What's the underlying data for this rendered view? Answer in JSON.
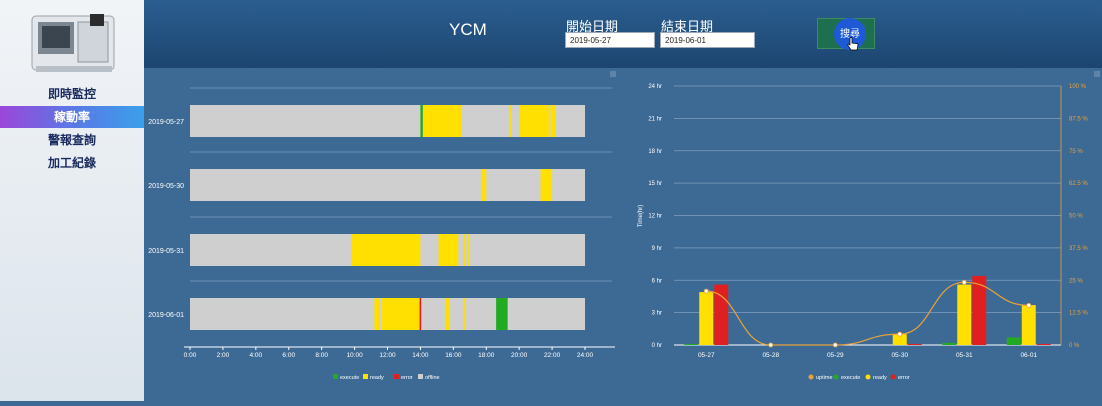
{
  "nav": {
    "items": [
      {
        "label": "即時監控"
      },
      {
        "label": "稼動率"
      },
      {
        "label": "警報查詢"
      },
      {
        "label": "加工紀錄"
      }
    ],
    "active_index": 1
  },
  "header": {
    "title": "YCM",
    "start_label": "開始日期",
    "end_label": "結束日期",
    "start_value": "2019-05-27",
    "end_value": "2019-06-01",
    "search_label": "搜尋"
  },
  "colors": {
    "execute": "#22aa22",
    "ready": "#ffe000",
    "error": "#e02020",
    "offline": "#cfcfcf",
    "uptime": "#e8a23a"
  },
  "chart_data": [
    {
      "type": "bar",
      "orientation": "timeline",
      "categories": [
        "2019-05-27",
        "2019-05-30",
        "2019-05-31",
        "2019-06-01"
      ],
      "x_ticks": [
        "0:00",
        "2:00",
        "4:00",
        "6:00",
        "8:00",
        "10:00",
        "12:00",
        "14:00",
        "16:00",
        "18:00",
        "20:00",
        "22:00",
        "24:00"
      ],
      "xlim": [
        0,
        24
      ],
      "legend": [
        "execute",
        "ready",
        "error",
        "offline"
      ],
      "legend_position": "bottom",
      "rows": [
        {
          "date": "2019-05-27",
          "segments": [
            {
              "state": "execute",
              "start": 14.0,
              "end": 14.15
            },
            {
              "state": "ready",
              "start": 14.15,
              "end": 16.5
            },
            {
              "state": "ready",
              "start": 19.45,
              "end": 19.55
            },
            {
              "state": "ready",
              "start": 20.0,
              "end": 21.8
            },
            {
              "state": "ready",
              "start": 21.9,
              "end": 22.2
            }
          ]
        },
        {
          "date": "2019-05-30",
          "segments": [
            {
              "state": "ready",
              "start": 17.7,
              "end": 18.0
            },
            {
              "state": "ready",
              "start": 21.3,
              "end": 22.0
            }
          ]
        },
        {
          "date": "2019-05-31",
          "segments": [
            {
              "state": "ready",
              "start": 9.8,
              "end": 14.0
            },
            {
              "state": "ready",
              "start": 15.1,
              "end": 16.3
            },
            {
              "state": "ready",
              "start": 16.6,
              "end": 16.7
            },
            {
              "state": "ready",
              "start": 16.9,
              "end": 17.0
            }
          ]
        },
        {
          "date": "2019-06-01",
          "segments": [
            {
              "state": "ready",
              "start": 11.2,
              "end": 11.5
            },
            {
              "state": "ready",
              "start": 11.65,
              "end": 13.95
            },
            {
              "state": "error",
              "start": 13.95,
              "end": 14.05
            },
            {
              "state": "ready",
              "start": 15.5,
              "end": 15.75
            },
            {
              "state": "ready",
              "start": 16.6,
              "end": 16.7
            },
            {
              "state": "execute",
              "start": 18.6,
              "end": 19.3
            }
          ]
        }
      ]
    },
    {
      "type": "bar",
      "categories": [
        "05-27",
        "05-28",
        "05-29",
        "05-30",
        "05-31",
        "06-01"
      ],
      "ylabel": "Time(hr)",
      "ylim": [
        0,
        24
      ],
      "y_ticks": [
        "0 hr",
        "3 hr",
        "6 hr",
        "9 hr",
        "12 hr",
        "15 hr",
        "18 hr",
        "21 hr",
        "24 hr"
      ],
      "y2_ticks": [
        "0 %",
        "12.5 %",
        "25 %",
        "37.5 %",
        "50 %",
        "62.5 %",
        "75 %",
        "87.5 %",
        "100 %"
      ],
      "y2lim": [
        0,
        100
      ],
      "legend": [
        "uptime",
        "execute",
        "ready",
        "error"
      ],
      "legend_position": "bottom",
      "series": [
        {
          "name": "execute",
          "values": [
            0.1,
            0,
            0,
            0,
            0.2,
            0.7
          ]
        },
        {
          "name": "ready",
          "values": [
            4.9,
            0,
            0,
            1.0,
            5.6,
            3.7
          ]
        },
        {
          "name": "error",
          "values": [
            5.6,
            0,
            0,
            0.1,
            6.4,
            0.1
          ]
        },
        {
          "name": "uptime",
          "values": [
            20.8,
            0,
            0,
            4.2,
            24.2,
            15.3
          ]
        }
      ]
    }
  ]
}
